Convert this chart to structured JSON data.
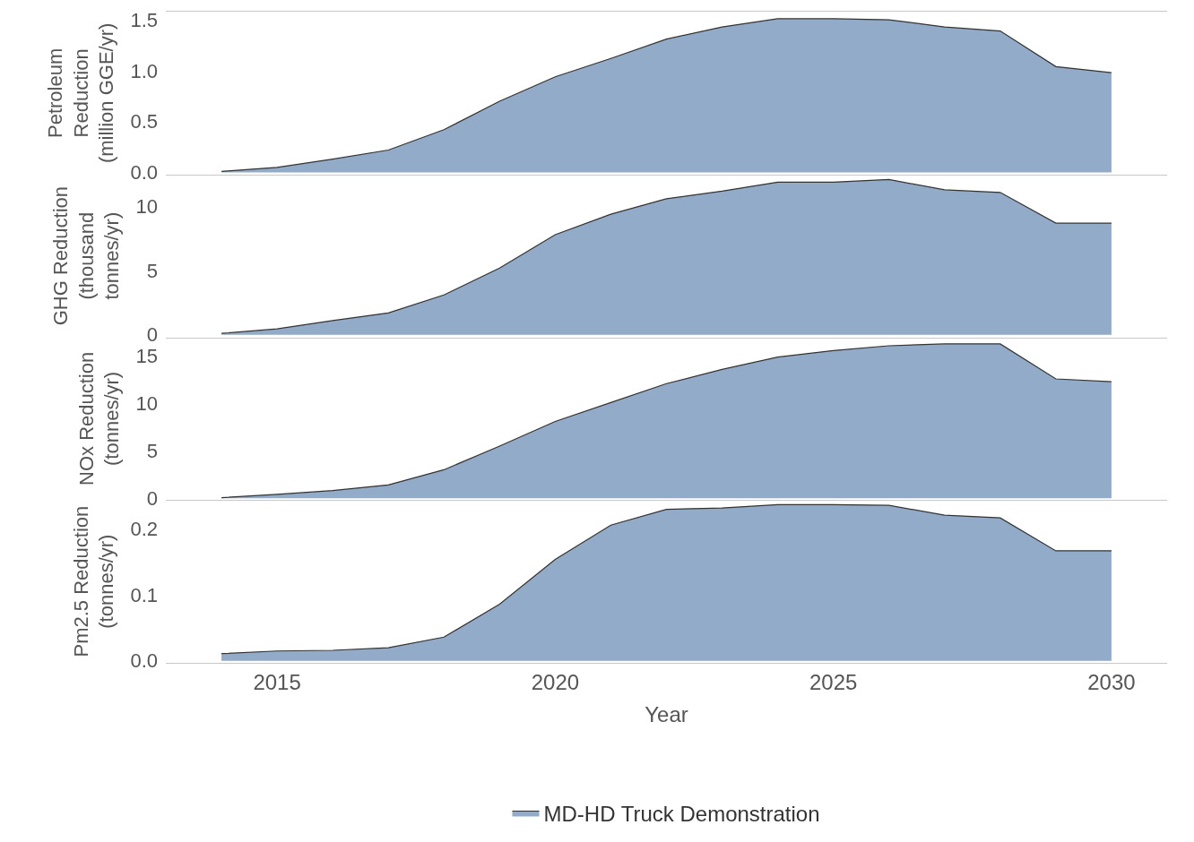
{
  "chart_data": [
    {
      "type": "area",
      "ylabel": "Petroleum\nReduction\n(million GGE/yr)",
      "x": [
        2014,
        2015,
        2016,
        2017,
        2018,
        2019,
        2020,
        2021,
        2022,
        2023,
        2024,
        2025,
        2026,
        2027,
        2028,
        2029,
        2030
      ],
      "series": [
        {
          "color": "#92abc9",
          "values": [
            0.01,
            0.05,
            0.13,
            0.22,
            0.42,
            0.7,
            0.94,
            1.12,
            1.31,
            1.43,
            1.51,
            1.51,
            1.5,
            1.43,
            1.39,
            1.04,
            0.98
          ]
        }
      ],
      "xlim": [
        2013,
        2031
      ],
      "ylim": [
        -0.02,
        1.58
      ],
      "yticks": [
        {
          "value": 0,
          "label": "0.0"
        },
        {
          "value": 0.5,
          "label": "0.5"
        },
        {
          "value": 1,
          "label": "1.0"
        },
        {
          "value": 1.5,
          "label": "1.5"
        }
      ],
      "tick_labels": "y",
      "grid": false
    },
    {
      "type": "area",
      "ylabel": "GHG Reduction\n(thousand\ntonnes/yr)",
      "x": [
        2014,
        2015,
        2016,
        2017,
        2018,
        2019,
        2020,
        2021,
        2022,
        2023,
        2024,
        2025,
        2026,
        2027,
        2028,
        2029,
        2030
      ],
      "series": [
        {
          "color": "#92abc9",
          "values": [
            0.1,
            0.45,
            1.1,
            1.7,
            3.1,
            5.2,
            7.8,
            9.4,
            10.6,
            11.2,
            11.9,
            11.9,
            12.1,
            11.3,
            11.1,
            8.7,
            8.7
          ]
        }
      ],
      "xlim": [
        2013,
        2031
      ],
      "ylim": [
        -0.2,
        12.5
      ],
      "yticks": [
        0,
        5,
        10
      ],
      "tick_labels": "y",
      "grid": false
    },
    {
      "type": "area",
      "ylabel": "NOx Reduction\n(tonnes/yr)",
      "x": [
        2014,
        2015,
        2016,
        2017,
        2018,
        2019,
        2020,
        2021,
        2022,
        2023,
        2024,
        2025,
        2026,
        2027,
        2028,
        2029,
        2030
      ],
      "series": [
        {
          "color": "#92abc9",
          "values": [
            0.05,
            0.4,
            0.8,
            1.4,
            3.0,
            5.5,
            8.1,
            10.1,
            12.1,
            13.6,
            14.9,
            15.6,
            16.1,
            16.3,
            16.3,
            12.6,
            12.3
          ]
        }
      ],
      "xlim": [
        2013,
        2031
      ],
      "ylim": [
        -0.2,
        17
      ],
      "yticks": [
        0,
        5,
        10,
        15
      ],
      "tick_labels": "y",
      "grid": false
    },
    {
      "type": "area",
      "ylabel": "Pm2.5 Reduction\n(tonnes/yr)",
      "xlabel": "Year",
      "x": [
        2014,
        2015,
        2016,
        2017,
        2018,
        2019,
        2020,
        2021,
        2022,
        2023,
        2024,
        2025,
        2026,
        2027,
        2028,
        2029,
        2030
      ],
      "series": [
        {
          "name": "MD-HD Truck Demonstration",
          "color": "#92abc9",
          "values": [
            0.011,
            0.015,
            0.016,
            0.02,
            0.036,
            0.086,
            0.154,
            0.206,
            0.23,
            0.232,
            0.237,
            0.237,
            0.236,
            0.221,
            0.217,
            0.167,
            0.167
          ]
        }
      ],
      "xlim": [
        2013,
        2031
      ],
      "ylim": [
        -0.003,
        0.244
      ],
      "yticks": [
        {
          "value": 0,
          "label": "0.0"
        },
        {
          "value": 0.1,
          "label": "0.1"
        },
        {
          "value": 0.2,
          "label": "0.2"
        }
      ],
      "xticks": [
        2015,
        2020,
        2025,
        2030
      ],
      "legend": "bottom",
      "grid": false
    }
  ]
}
